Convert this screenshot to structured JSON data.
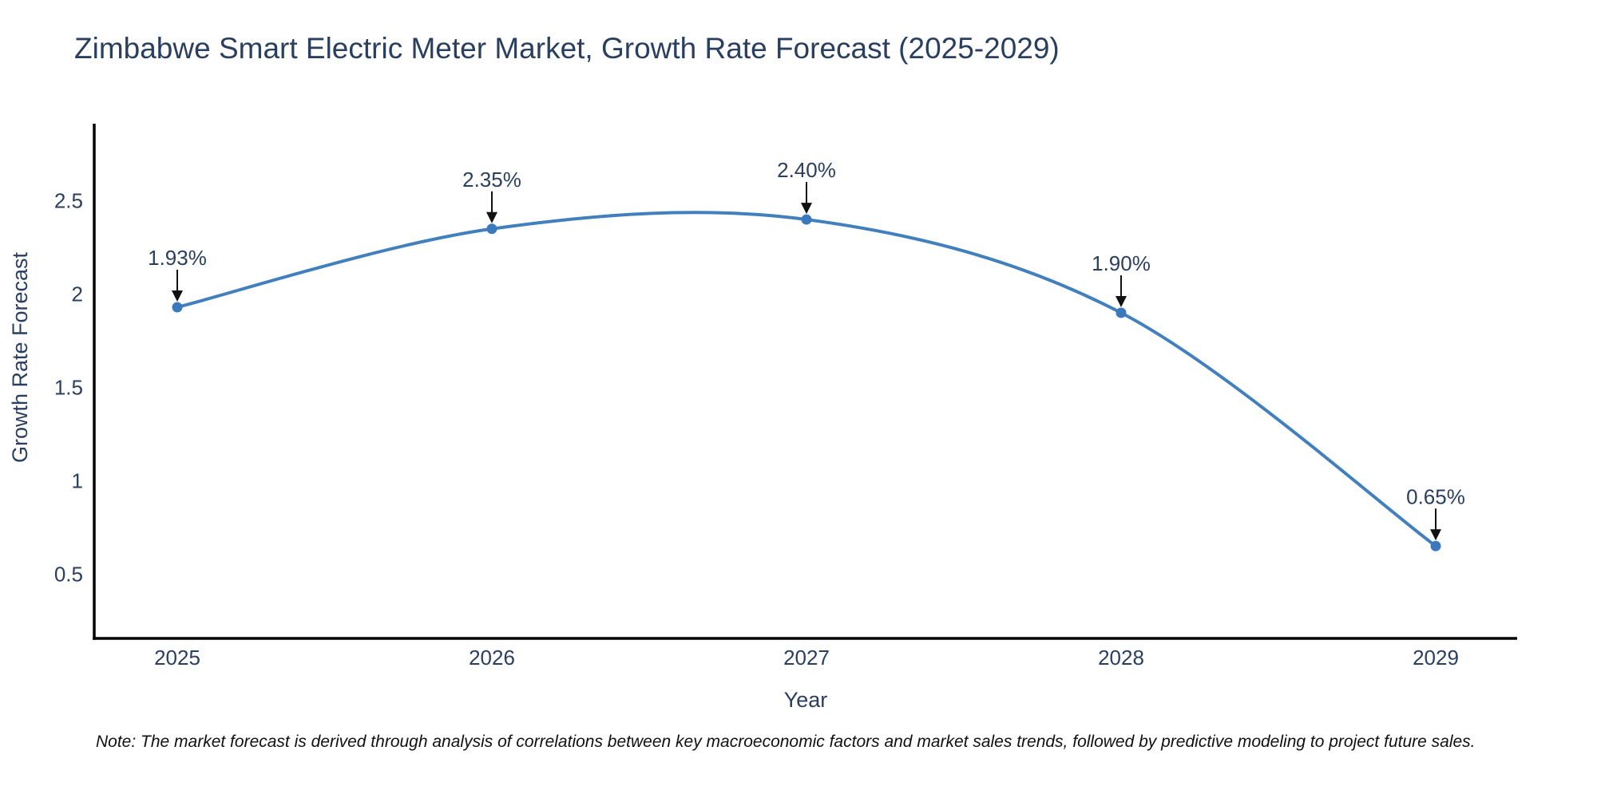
{
  "chart_data": {
    "type": "line",
    "title": "Zimbabwe Smart Electric Meter Market, Growth Rate Forecast (2025-2029)",
    "xlabel": "Year",
    "ylabel": "Growth Rate Forecast",
    "categories": [
      "2025",
      "2026",
      "2027",
      "2028",
      "2029"
    ],
    "values": [
      1.93,
      2.35,
      2.4,
      1.9,
      0.65
    ],
    "point_labels": [
      "1.93%",
      "2.35%",
      "2.40%",
      "1.90%",
      "0.65%"
    ],
    "ytick_values": [
      0.5,
      1,
      1.5,
      2,
      2.5
    ],
    "ytick_labels": [
      "0.5",
      "1",
      "1.5",
      "2",
      "2.5"
    ],
    "ylim": [
      0.155,
      2.905
    ],
    "curve": "spline",
    "grid": false,
    "legend_position": "none",
    "colors": {
      "line": "#4180bd",
      "marker": "#3a7abc",
      "arrow": "#111111",
      "axis": "#000000",
      "text": "#2a3f5f"
    }
  },
  "note": {
    "text": "Note: The market forecast is derived through analysis of correlations between key macroeconomic factors and market sales trends, followed by predictive modeling to project future sales."
  }
}
